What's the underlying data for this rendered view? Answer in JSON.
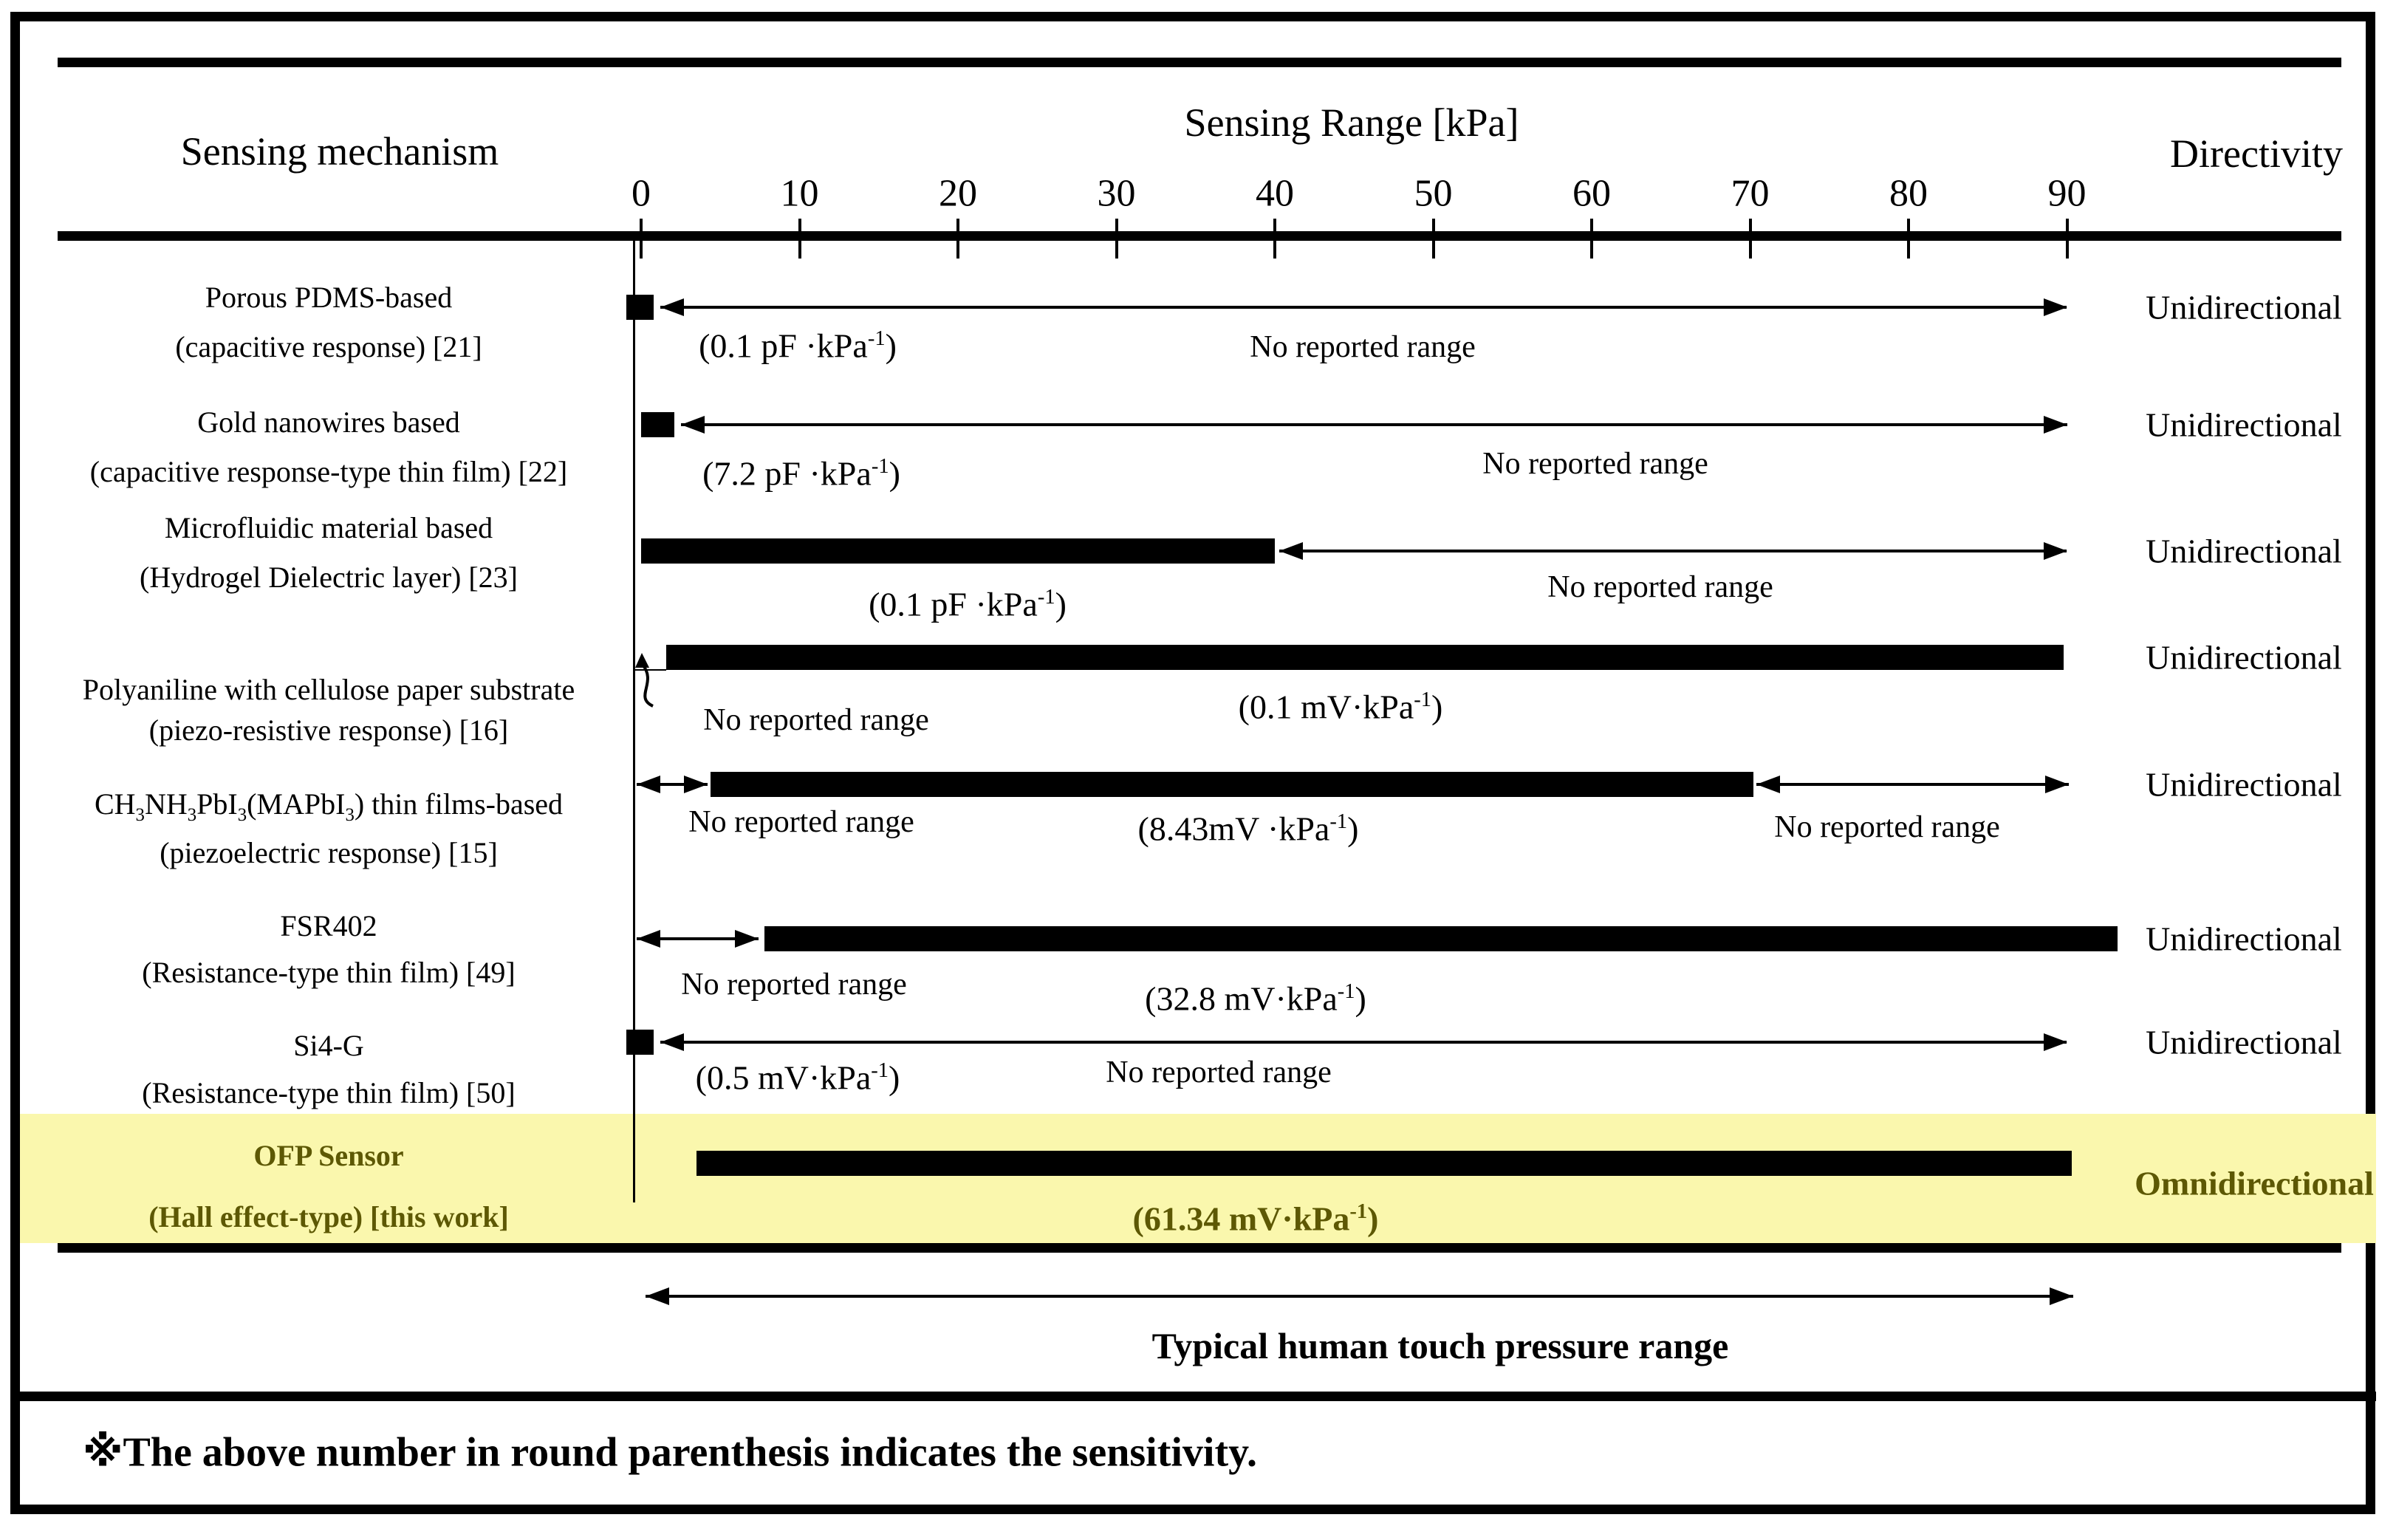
{
  "header": {
    "col_mechanism": "Sensing mechanism",
    "col_range": "Sensing Range [kPa]",
    "col_directivity": "Directivity"
  },
  "footer": {
    "touch_range_label": "Typical human touch pressure range",
    "footnote": "※The above number in round parenthesis indicates the sensitivity."
  },
  "colors": {
    "highlight_band": "#faf7ad",
    "highlight_text": "#5d5804",
    "ink": "#000000"
  },
  "chart_data": {
    "type": "bar",
    "variant": "horizontal-range-comparison",
    "xlabel": "Sensing Range [kPa]",
    "xlim": [
      0,
      93
    ],
    "x_axis": {
      "ticks": [
        0,
        10,
        20,
        30,
        40,
        50,
        60,
        70,
        80,
        90
      ],
      "unit": "kPa"
    },
    "grid": false,
    "touch_range": {
      "from_kpa": 0,
      "to_kpa": 90
    },
    "no_range_text": "No reported range",
    "rows": [
      {
        "mechanism": [
          "Porous PDMS-based",
          "(capacitive response) [21]"
        ],
        "sensitivity": [
          {
            "t": "(0.1 pF ·kPa"
          },
          {
            "sup": "-1"
          },
          {
            "t": ")"
          }
        ],
        "sensitivity_value": "0.1 pF/kPa",
        "sensitivity_pos": {
          "x": 1080,
          "y": 468
        },
        "range_kpa": [
          0,
          0.8
        ],
        "arrows": [
          {
            "from": 1.2,
            "to": 90,
            "heads": "both"
          }
        ],
        "annotations": [
          {
            "text": "No reported range",
            "x": 1845,
            "y": 470
          }
        ],
        "directivity": "Unidirectional",
        "highlighted": false
      },
      {
        "mechanism": [
          "Gold nanowires based",
          "(capacitive response-type thin film) [22]"
        ],
        "sensitivity": [
          {
            "t": "(7.2 pF ·kPa"
          },
          {
            "sup": "-1"
          },
          {
            "t": ")"
          }
        ],
        "sensitivity_value": "7.2 pF/kPa",
        "sensitivity_pos": {
          "x": 1085,
          "y": 641
        },
        "range_kpa": [
          0,
          2.1
        ],
        "arrows": [
          {
            "from": 2.5,
            "to": 90,
            "heads": "both"
          }
        ],
        "annotations": [
          {
            "text": "No reported range",
            "x": 2160,
            "y": 628
          }
        ],
        "directivity": "Unidirectional",
        "highlighted": false
      },
      {
        "mechanism": [
          "Microfluidic material based",
          "(Hydrogel Dielectric layer) [23]"
        ],
        "sensitivity": [
          {
            "t": "(0.1 pF ·kPa"
          },
          {
            "sup": "-1"
          },
          {
            "t": ")"
          }
        ],
        "sensitivity_value": "0.1 pF/kPa",
        "sensitivity_pos": {
          "x": 1310,
          "y": 818
        },
        "range_kpa": [
          0,
          40
        ],
        "arrows": [
          {
            "from": 40.3,
            "to": 90,
            "heads": "both"
          }
        ],
        "annotations": [
          {
            "text": "No reported range",
            "x": 2248,
            "y": 795
          }
        ],
        "directivity": "Unidirectional",
        "highlighted": false
      },
      {
        "mechanism": [
          "Polyaniline with cellulose paper substrate",
          "(piezo-resistive response) [16]"
        ],
        "sensitivity": [
          {
            "t": "(0.1 mV·kPa"
          },
          {
            "sup": "-1"
          },
          {
            "t": ")"
          }
        ],
        "sensitivity_value": "0.1 mV/kPa",
        "sensitivity_pos": {
          "x": 1815,
          "y": 957
        },
        "range_kpa": [
          1.6,
          89.8
        ],
        "arrows": [],
        "squiggle": {
          "x": 852,
          "y": 884
        },
        "baseline_tick": {
          "x1": 858,
          "x2": 902,
          "y": 906
        },
        "annotations": [
          {
            "text": "No reported range",
            "x": 1105,
            "y": 975
          }
        ],
        "directivity": "Unidirectional",
        "highlighted": false
      },
      {
        "mechanism": [
          [
            {
              "t": "CH"
            },
            {
              "sub": "3"
            },
            {
              "t": "NH"
            },
            {
              "sub": "3"
            },
            {
              "t": "PbI"
            },
            {
              "sub": "3"
            },
            {
              "t": "(MAPbI"
            },
            {
              "sub": "3"
            },
            {
              "t": ") thin films-based"
            }
          ],
          "(piezoelectric response) [15]"
        ],
        "sensitivity": [
          {
            "t": "(8.43mV ·kPa"
          },
          {
            "sup": "-1"
          },
          {
            "t": ")"
          }
        ],
        "sensitivity_value": "8.43 mV/kPa",
        "sensitivity_pos": {
          "x": 1690,
          "y": 1122
        },
        "range_kpa": [
          4.4,
          70.2
        ],
        "arrows": [
          {
            "from": -0.3,
            "to": 4.2,
            "heads": "both"
          },
          {
            "from": 70.4,
            "to": 90.1,
            "heads": "both"
          }
        ],
        "annotations": [
          {
            "text": "No reported range",
            "x": 1085,
            "y": 1113
          },
          {
            "text": "No reported range",
            "x": 2555,
            "y": 1120
          }
        ],
        "directivity": "Unidirectional",
        "highlighted": false
      },
      {
        "mechanism": [
          "FSR402",
          "(Resistance-type thin film) [49]"
        ],
        "sensitivity": [
          {
            "t": "(32.8 mV·kPa"
          },
          {
            "sup": "-1"
          },
          {
            "t": ")"
          }
        ],
        "sensitivity_value": "32.8 mV/kPa",
        "sensitivity_pos": {
          "x": 1700,
          "y": 1352
        },
        "range_kpa": [
          7.8,
          93.2
        ],
        "arrows": [
          {
            "from": -0.3,
            "to": 7.4,
            "heads": "both"
          }
        ],
        "annotations": [
          {
            "text": "No reported range",
            "x": 1075,
            "y": 1333
          }
        ],
        "directivity": "Unidirectional",
        "highlighted": false
      },
      {
        "mechanism": [
          "Si4-G",
          "(Resistance-type thin film) [50]"
        ],
        "sensitivity": [
          {
            "t": "(0.5 mV·kPa"
          },
          {
            "sup": "-1"
          },
          {
            "t": ")"
          }
        ],
        "sensitivity_value": "0.5 mV/kPa",
        "sensitivity_pos": {
          "x": 1080,
          "y": 1459
        },
        "range_kpa": [
          0,
          0.8
        ],
        "arrows": [
          {
            "from": 1.2,
            "to": 90,
            "heads": "both"
          }
        ],
        "annotations": [
          {
            "text": "No reported range",
            "x": 1650,
            "y": 1452
          }
        ],
        "directivity": "Unidirectional",
        "highlighted": false
      },
      {
        "mechanism": [
          "OFP Sensor",
          "(Hall effect-type) [this work]"
        ],
        "sensitivity": [
          {
            "t": "(61.34 mV·kPa"
          },
          {
            "sup": "-1"
          },
          {
            "t": ")"
          }
        ],
        "sensitivity_value": "61.34 mV/kPa",
        "sensitivity_pos": {
          "x": 1700,
          "y": 1650
        },
        "range_kpa": [
          3.5,
          90.3
        ],
        "arrows": [],
        "annotations": [],
        "directivity": "Omnidirectional",
        "highlighted": true
      }
    ]
  }
}
